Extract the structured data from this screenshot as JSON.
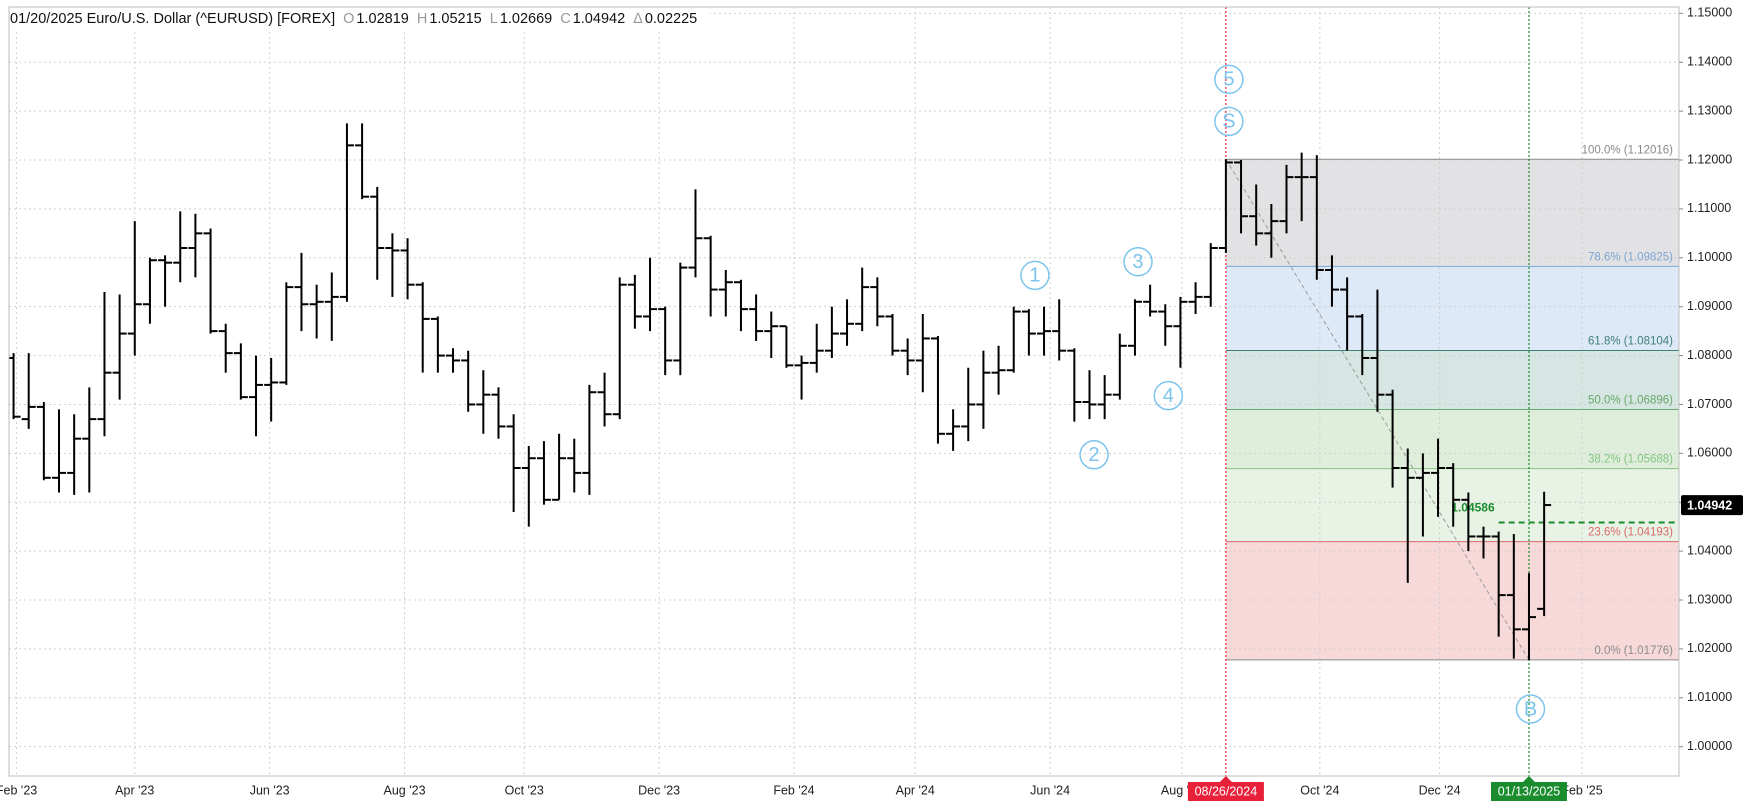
{
  "chart_data": {
    "type": "ohlc",
    "title": "01/20/2025 Euro/U.S. Dollar (^EURUSD) [FOREX]",
    "header_labels": [
      "O",
      "H",
      "L",
      "C",
      "Δ"
    ],
    "change": 0.02225,
    "color": "#000000",
    "ohlc": [
      [
        1.0795,
        1.0805,
        1.067,
        1.0675
      ],
      [
        1.067,
        1.0805,
        1.065,
        1.0695
      ],
      [
        1.0695,
        1.0705,
        1.0545,
        1.055
      ],
      [
        1.055,
        1.069,
        1.052,
        1.056
      ],
      [
        1.056,
        1.068,
        1.0515,
        1.063
      ],
      [
        1.063,
        1.0735,
        1.052,
        1.067
      ],
      [
        1.067,
        1.093,
        1.0635,
        1.0765
      ],
      [
        1.0765,
        1.0925,
        1.071,
        1.0845
      ],
      [
        1.0845,
        1.1075,
        1.08,
        1.0905
      ],
      [
        1.0905,
        1.1,
        1.0865,
        1.0995
      ],
      [
        1.0995,
        1.1005,
        1.09,
        1.099
      ],
      [
        1.099,
        1.1095,
        1.095,
        1.102
      ],
      [
        1.102,
        1.109,
        1.096,
        1.105
      ],
      [
        1.105,
        1.106,
        1.0845,
        1.085
      ],
      [
        1.085,
        1.0865,
        1.0765,
        1.0805
      ],
      [
        1.0805,
        1.0825,
        1.071,
        1.0715
      ],
      [
        1.0715,
        1.08,
        1.0635,
        1.074
      ],
      [
        1.074,
        1.0795,
        1.0665,
        1.0745
      ],
      [
        1.0745,
        1.095,
        1.074,
        1.094
      ],
      [
        1.094,
        1.101,
        1.085,
        1.0905
      ],
      [
        1.0905,
        1.0945,
        1.0835,
        1.091
      ],
      [
        1.091,
        1.097,
        1.083,
        1.092
      ],
      [
        1.092,
        1.1275,
        1.091,
        1.123
      ],
      [
        1.123,
        1.1275,
        1.112,
        1.1125
      ],
      [
        1.1125,
        1.1145,
        1.0955,
        1.102
      ],
      [
        1.102,
        1.105,
        1.092,
        1.1015
      ],
      [
        1.1015,
        1.104,
        1.0915,
        1.0945
      ],
      [
        1.0945,
        1.095,
        1.0765,
        1.0875
      ],
      [
        1.0875,
        1.088,
        1.0765,
        1.08
      ],
      [
        1.08,
        1.0815,
        1.0765,
        1.079
      ],
      [
        1.079,
        1.081,
        1.0685,
        1.07
      ],
      [
        1.07,
        1.077,
        1.064,
        1.072
      ],
      [
        1.072,
        1.0735,
        1.063,
        1.0655
      ],
      [
        1.0655,
        1.068,
        1.048,
        1.057
      ],
      [
        1.057,
        1.0615,
        1.045,
        1.059
      ],
      [
        1.059,
        1.0625,
        1.0495,
        1.0505
      ],
      [
        1.0505,
        1.064,
        1.0505,
        1.059
      ],
      [
        1.059,
        1.063,
        1.052,
        1.056
      ],
      [
        1.056,
        1.074,
        1.0515,
        1.0725
      ],
      [
        1.0725,
        1.0765,
        1.0655,
        1.068
      ],
      [
        1.068,
        1.096,
        1.067,
        1.0945
      ],
      [
        1.0945,
        1.0965,
        1.0855,
        1.088
      ],
      [
        1.088,
        1.1,
        1.085,
        1.0895
      ],
      [
        1.0895,
        1.09,
        1.076,
        1.079
      ],
      [
        1.079,
        1.099,
        1.076,
        1.098
      ],
      [
        1.098,
        1.114,
        1.096,
        1.104
      ],
      [
        1.104,
        1.1045,
        1.088,
        1.0935
      ],
      [
        1.0935,
        1.0975,
        1.088,
        1.095
      ],
      [
        1.095,
        1.0955,
        1.085,
        1.0895
      ],
      [
        1.0895,
        1.0925,
        1.083,
        1.085
      ],
      [
        1.085,
        1.089,
        1.0795,
        1.086
      ],
      [
        1.086,
        1.086,
        1.0775,
        1.078
      ],
      [
        1.078,
        1.08,
        1.071,
        1.0785
      ],
      [
        1.0785,
        1.0865,
        1.0765,
        1.081
      ],
      [
        1.081,
        1.09,
        1.0795,
        1.0845
      ],
      [
        1.0845,
        1.0915,
        1.082,
        1.0865
      ],
      [
        1.0865,
        1.098,
        1.085,
        1.094
      ],
      [
        1.094,
        1.096,
        1.086,
        1.088
      ],
      [
        1.088,
        1.0885,
        1.08,
        1.081
      ],
      [
        1.081,
        1.0835,
        1.076,
        1.079
      ],
      [
        1.079,
        1.0885,
        1.0725,
        1.0835
      ],
      [
        1.0835,
        1.084,
        1.062,
        1.064
      ],
      [
        1.064,
        1.069,
        1.0605,
        1.0655
      ],
      [
        1.0655,
        1.0775,
        1.0625,
        1.07
      ],
      [
        1.07,
        1.081,
        1.065,
        1.0765
      ],
      [
        1.0765,
        1.082,
        1.072,
        1.077
      ],
      [
        1.077,
        1.09,
        1.0765,
        1.089
      ],
      [
        1.089,
        1.0895,
        1.08,
        1.0845
      ],
      [
        1.0845,
        1.09,
        1.08,
        1.085
      ],
      [
        1.085,
        1.0915,
        1.079,
        1.081
      ],
      [
        1.081,
        1.0815,
        1.0665,
        1.0705
      ],
      [
        1.0705,
        1.077,
        1.067,
        1.07
      ],
      [
        1.07,
        1.076,
        1.067,
        1.072
      ],
      [
        1.072,
        1.0845,
        1.071,
        1.082
      ],
      [
        1.082,
        1.0915,
        1.08,
        1.091
      ],
      [
        1.091,
        1.0945,
        1.088,
        1.089
      ],
      [
        1.089,
        1.0905,
        1.082,
        1.086
      ],
      [
        1.086,
        1.092,
        1.0775,
        1.091
      ],
      [
        1.091,
        1.095,
        1.0885,
        1.092
      ],
      [
        1.092,
        1.103,
        1.09,
        1.102
      ],
      [
        1.102,
        1.12016,
        1.101,
        1.1195
      ],
      [
        1.1195,
        1.12,
        1.105,
        1.1085
      ],
      [
        1.1085,
        1.115,
        1.1025,
        1.105
      ],
      [
        1.105,
        1.111,
        1.1,
        1.1075
      ],
      [
        1.1075,
        1.119,
        1.105,
        1.1165
      ],
      [
        1.1165,
        1.1215,
        1.1075,
        1.1165
      ],
      [
        1.1165,
        1.121,
        1.0955,
        1.0975
      ],
      [
        1.0975,
        1.1005,
        1.09,
        1.0935
      ],
      [
        1.0935,
        1.096,
        1.081,
        1.088
      ],
      [
        1.088,
        1.0885,
        1.076,
        1.0795
      ],
      [
        1.0795,
        1.0935,
        1.0685,
        1.072
      ],
      [
        1.072,
        1.073,
        1.053,
        1.057
      ],
      [
        1.057,
        1.061,
        1.0335,
        1.055
      ],
      [
        1.055,
        1.06,
        1.043,
        1.056
      ],
      [
        1.056,
        1.063,
        1.047,
        1.057
      ],
      [
        1.057,
        1.058,
        1.045,
        1.0505
      ],
      [
        1.0505,
        1.052,
        1.04,
        1.043
      ],
      [
        1.043,
        1.045,
        1.0385,
        1.043
      ],
      [
        1.043,
        1.044,
        1.0225,
        1.031
      ],
      [
        1.031,
        1.0435,
        1.018,
        1.024
      ],
      [
        1.024,
        1.0355,
        1.01776,
        1.0265
      ],
      [
        1.02819,
        1.05215,
        1.02669,
        1.04942
      ]
    ],
    "xlim": [
      -0.3,
      109.9
    ],
    "ylim": [
      0.994,
      1.1513
    ],
    "xticks": [
      {
        "value": 0.2,
        "label": "Feb '23"
      },
      {
        "value": 8.0,
        "label": "Apr '23"
      },
      {
        "value": 16.9,
        "label": "Jun '23"
      },
      {
        "value": 25.8,
        "label": "Aug '23"
      },
      {
        "value": 33.7,
        "label": "Oct '23"
      },
      {
        "value": 42.6,
        "label": "Dec '23"
      },
      {
        "value": 51.5,
        "label": "Feb '24"
      },
      {
        "value": 59.5,
        "label": "Apr '24"
      },
      {
        "value": 68.4,
        "label": "Jun '24"
      },
      {
        "value": 77.1,
        "label": "Aug '24"
      },
      {
        "value": 86.2,
        "label": "Oct '24"
      },
      {
        "value": 94.1,
        "label": "Dec '24"
      },
      {
        "value": 103.5,
        "label": "Feb '25"
      }
    ],
    "yticks": [
      {
        "value": 1.0,
        "label": "1.00000"
      },
      {
        "value": 1.01,
        "label": "1.01000"
      },
      {
        "value": 1.02,
        "label": "1.02000"
      },
      {
        "value": 1.03,
        "label": "1.03000"
      },
      {
        "value": 1.04,
        "label": "1.04000"
      },
      {
        "value": 1.05,
        "label": "1.05000"
      },
      {
        "value": 1.06,
        "label": "1.06000"
      },
      {
        "value": 1.07,
        "label": "1.07000"
      },
      {
        "value": 1.08,
        "label": "1.08000"
      },
      {
        "value": 1.09,
        "label": "1.09000"
      },
      {
        "value": 1.1,
        "label": "1.10000"
      },
      {
        "value": 1.11,
        "label": "1.11000"
      },
      {
        "value": 1.12,
        "label": "1.12000"
      },
      {
        "value": 1.13,
        "label": "1.13000"
      },
      {
        "value": 1.14,
        "label": "1.14000"
      },
      {
        "value": 1.15,
        "label": "1.15000"
      }
    ],
    "grid": true,
    "fib": {
      "x": 80,
      "levels": [
        {
          "value": 1.12016,
          "label": "100.0% (1.12016)",
          "color": "#8a8a8a",
          "fill": "#e2e2e4"
        },
        {
          "value": 1.09825,
          "label": "78.6% (1.09825)",
          "color": "#7fa6d6",
          "fill": "#dde9f7"
        },
        {
          "value": 1.08104,
          "label": "61.8% (1.08104)",
          "color": "#3f7f79",
          "fill": "#d6e6e2"
        },
        {
          "value": 1.06896,
          "label": "50.0% (1.06896)",
          "color": "#6aa86a",
          "fill": "#deeedb"
        },
        {
          "value": 1.05688,
          "label": "38.2% (1.05688)",
          "color": "#82c482",
          "fill": "#e8f3e6"
        },
        {
          "value": 1.04193,
          "label": "23.6% (1.04193)",
          "color": "#d9686b",
          "fill": "#f8d9da"
        },
        {
          "value": 1.01776,
          "label": "0.0% (1.01776)",
          "color": "#8a8a8a",
          "fill": "none"
        }
      ]
    },
    "hline": {
      "value": 1.04586,
      "label": "1.04586",
      "x": 98,
      "color": "#1a8c2e"
    },
    "markers": [
      {
        "x": 80,
        "label": "08/26/2024",
        "color": "#e8203a"
      },
      {
        "x": 100,
        "label": "01/13/2025",
        "color": "#1a8c2e"
      }
    ],
    "annotations": [
      {
        "label": "1",
        "x": 67.4,
        "y": 1.0964
      },
      {
        "label": "2",
        "x": 71.3,
        "y": 1.0597
      },
      {
        "label": "3",
        "x": 74.2,
        "y": 1.0992
      },
      {
        "label": "4",
        "x": 76.2,
        "y": 1.0718
      },
      {
        "label": "5",
        "x": 80.2,
        "y": 1.1365
      },
      {
        "label": "S",
        "x": 80.2,
        "y": 1.1279
      },
      {
        "label": "B",
        "x": 100.1,
        "y": 1.0077
      }
    ]
  }
}
